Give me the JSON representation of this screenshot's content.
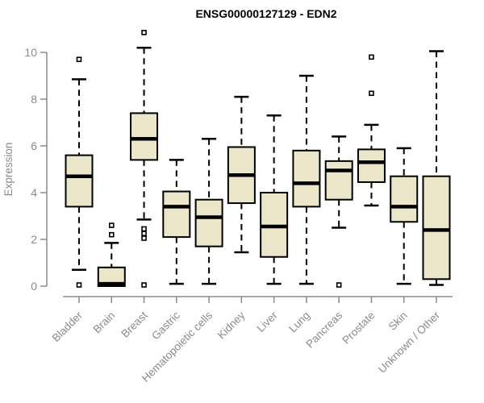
{
  "chart_data": {
    "type": "boxplot",
    "title": "ENSG00000127129 - EDN2",
    "ylabel": "Expression",
    "xlabel": "",
    "ylim": [
      0,
      10.9
    ],
    "yticks": [
      0,
      2,
      4,
      6,
      8,
      10
    ],
    "grid": false,
    "legend": "none",
    "categories": [
      "Bladder",
      "Brain",
      "Breast",
      "Gastric",
      "Hematopoietic cells",
      "Kidney",
      "Liver",
      "Lung",
      "Pancreas",
      "Prostate",
      "Skin",
      "Unknown / Other"
    ],
    "series": [
      {
        "category": "Bladder",
        "whisker_low": 0.7,
        "q1": 3.4,
        "median": 4.7,
        "q3": 5.6,
        "whisker_high": 8.85,
        "outliers": [
          9.7,
          0.05
        ]
      },
      {
        "category": "Brain",
        "whisker_low": 0.0,
        "q1": 0.0,
        "median": 0.1,
        "q3": 0.8,
        "whisker_high": 1.85,
        "outliers": [
          2.6,
          2.2
        ]
      },
      {
        "category": "Breast",
        "whisker_low": 2.85,
        "q1": 5.4,
        "median": 6.3,
        "q3": 7.4,
        "whisker_high": 10.2,
        "outliers": [
          10.85,
          2.45,
          2.25,
          2.05,
          0.05
        ]
      },
      {
        "category": "Gastric",
        "whisker_low": 0.1,
        "q1": 2.1,
        "median": 3.4,
        "q3": 4.05,
        "whisker_high": 5.4,
        "outliers": []
      },
      {
        "category": "Hematopoietic cells",
        "whisker_low": 0.1,
        "q1": 1.7,
        "median": 2.95,
        "q3": 3.7,
        "whisker_high": 6.3,
        "outliers": []
      },
      {
        "category": "Kidney",
        "whisker_low": 1.45,
        "q1": 3.55,
        "median": 4.75,
        "q3": 5.95,
        "whisker_high": 8.1,
        "outliers": []
      },
      {
        "category": "Liver",
        "whisker_low": 0.1,
        "q1": 1.25,
        "median": 2.55,
        "q3": 4.0,
        "whisker_high": 7.3,
        "outliers": []
      },
      {
        "category": "Lung",
        "whisker_low": 0.1,
        "q1": 3.4,
        "median": 4.4,
        "q3": 5.8,
        "whisker_high": 9.0,
        "outliers": []
      },
      {
        "category": "Pancreas",
        "whisker_low": 2.5,
        "q1": 3.7,
        "median": 4.95,
        "q3": 5.35,
        "whisker_high": 6.4,
        "outliers": [
          0.05
        ]
      },
      {
        "category": "Prostate",
        "whisker_low": 3.45,
        "q1": 4.45,
        "median": 5.3,
        "q3": 5.85,
        "whisker_high": 6.9,
        "outliers": [
          9.8,
          8.25
        ]
      },
      {
        "category": "Skin",
        "whisker_low": 0.1,
        "q1": 2.75,
        "median": 3.4,
        "q3": 4.7,
        "whisker_high": 5.9,
        "outliers": []
      },
      {
        "category": "Unknown / Other",
        "whisker_low": 0.05,
        "q1": 0.3,
        "median": 2.4,
        "q3": 4.7,
        "whisker_high": 10.05,
        "outliers": []
      }
    ],
    "colors": {
      "box_fill": "#ebe5ca",
      "box_stroke": "#000000",
      "median": "#000000",
      "whisker": "#000000",
      "outlier_stroke": "#000000",
      "outlier_fill": "#ffffff",
      "axis": "#8a8a8a",
      "title": "#000000",
      "background": "#ffffff"
    }
  }
}
